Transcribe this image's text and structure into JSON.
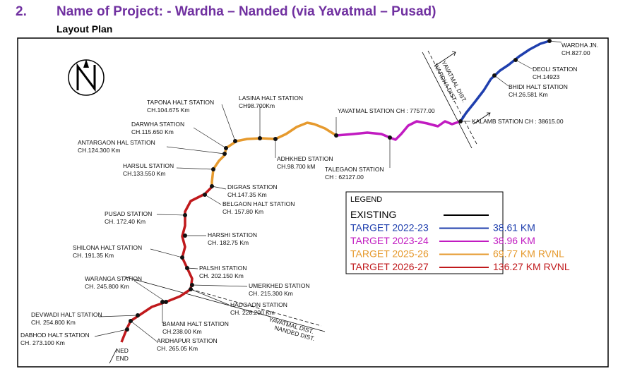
{
  "header": {
    "number": "2.",
    "title": "Name of Project: - Wardha – Nanded (via Yavatmal – Pusad)",
    "subtitle": "Layout Plan"
  },
  "compass": "N",
  "stations": [
    {
      "name": "WARDHA JN.",
      "chainage": "CH.827.00"
    },
    {
      "name": "DEOLI STATION",
      "chainage": "CH.14923"
    },
    {
      "name": "BHIDI HALT STATION",
      "chainage": "CH.26.581 Km"
    },
    {
      "name": "KALAMB STATION CH : 38615.00"
    },
    {
      "name": "YAVATMAL STATION CH : 77577.00"
    },
    {
      "name": "TALEGAON STATION",
      "chainage": "CH : 62127.00"
    },
    {
      "name": "ADHKHED STATION",
      "chainage": "CH.98.700 kM"
    },
    {
      "name": "LASINA HALT STATION",
      "chainage": "CH98.700Km"
    },
    {
      "name": "TAPONA HALT STATION",
      "chainage": "CH.104.675 Km"
    },
    {
      "name": "DARWHA STATION",
      "chainage": "CH.115.650 Km"
    },
    {
      "name": "ANTARGAON HAL STATION",
      "chainage": "CH.124.300 Km"
    },
    {
      "name": "HARSUL STATION",
      "chainage": "CH.133.550 Km"
    },
    {
      "name": "DIGRAS STATION",
      "chainage": "CH.147.35 Km"
    },
    {
      "name": "BELGAON HALT STATION",
      "chainage": "CH. 157.80 Km"
    },
    {
      "name": "PUSAD STATION",
      "chainage": "CH. 172.40 Km"
    },
    {
      "name": "HARSHI STATION",
      "chainage": "CH. 182.75 Km"
    },
    {
      "name": "SHILONA HALT STATION",
      "chainage": "CH. 191.35 Km"
    },
    {
      "name": "PALSHI STATION",
      "chainage": "CH. 202.150 Km"
    },
    {
      "name": "UMERKHED STATION",
      "chainage": "CH. 215.300 Km"
    },
    {
      "name": "WARANGA STATION",
      "chainage": "CH. 245.800 Km"
    },
    {
      "name": "HADGAON STATION",
      "chainage": "CH. 228.200 Km"
    },
    {
      "name": "DEVWADI HALT STATION",
      "chainage": "CH. 254.800 Km"
    },
    {
      "name": "BAMANI HALT STATION",
      "chainage": "CH.238.00 Km"
    },
    {
      "name": "ARDHAPUR STATION",
      "chainage": "CH. 265.05 Km"
    },
    {
      "name": "DABHOD HALT STATION",
      "chainage": "CH. 273.100 Km"
    }
  ],
  "end_label": [
    "NED",
    "END"
  ],
  "districts": {
    "top": [
      "WARDHA DIST.",
      "YAVATMAL DIST."
    ],
    "bottom": [
      "YAVATMAL DIST.",
      "NANDED DIST."
    ]
  },
  "legend": {
    "title": "LEGEND",
    "items": [
      {
        "label": "EXISTING",
        "color": "#000000"
      },
      {
        "label": "TARGET 2022-23",
        "length": "38.61 KM",
        "color": "#1f3fae"
      },
      {
        "label": "TARGET 2023-24",
        "length": "38.96 KM",
        "color": "#c11bc1"
      },
      {
        "label": "TARGET 2025-26",
        "length": "69.77 KM RVNL",
        "color": "#e69a2e"
      },
      {
        "label": "TARGET 2026-27",
        "length": "136.27 KM RVNL",
        "color": "#c0191c"
      }
    ]
  }
}
